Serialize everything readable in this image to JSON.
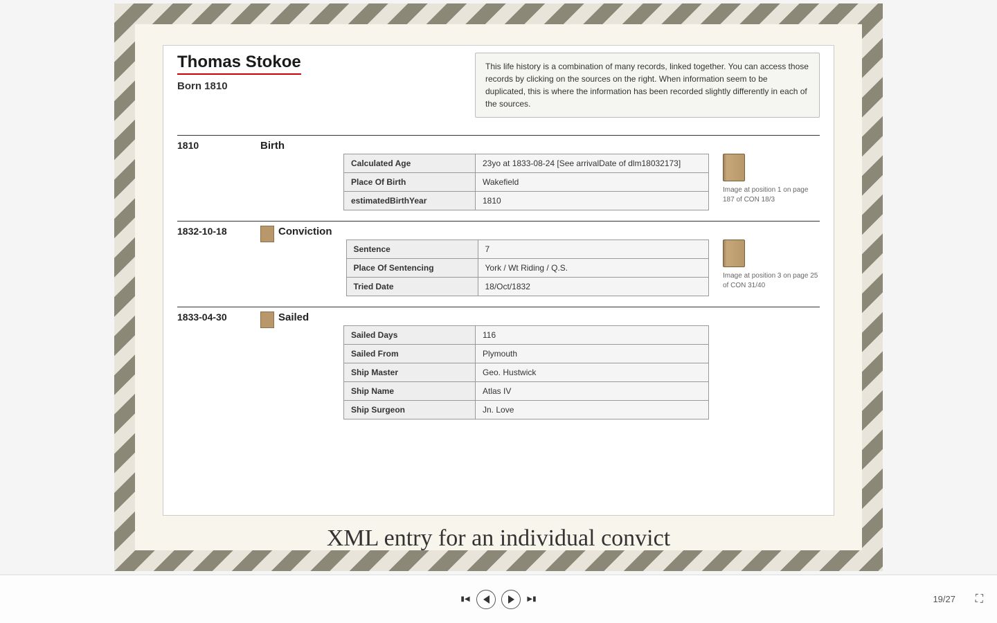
{
  "person": {
    "name": "Thomas Stokoe",
    "born_label": "Born 1810"
  },
  "info_box": "This life history is a combination of many records, linked together. You can access those records by clicking on the sources on the right. When information seem to be duplicated, this is where the information has been recorded slightly differently in each of the sources.",
  "events": [
    {
      "date": "1810",
      "title": "Birth",
      "has_icon": false,
      "rows": [
        {
          "k": "Calculated Age",
          "v": "23yo at 1833-08-24 [See arrivalDate of dlm18032173]"
        },
        {
          "k": "Place Of Birth",
          "v": "Wakefield"
        },
        {
          "k": "estimatedBirthYear",
          "v": "1810"
        }
      ],
      "source": "Image at position 1 on page 187 of CON 18/3"
    },
    {
      "date": "1832-10-18",
      "title": "Conviction",
      "has_icon": true,
      "rows": [
        {
          "k": "Sentence",
          "v": "7"
        },
        {
          "k": "Place Of Sentencing",
          "v": "York / Wt Riding / Q.S."
        },
        {
          "k": "Tried Date",
          "v": "18/Oct/1832"
        }
      ],
      "source": "Image at position 3 on page 25 of CON 31/40"
    },
    {
      "date": "1833-04-30",
      "title": "Sailed",
      "has_icon": true,
      "rows": [
        {
          "k": "Sailed Days",
          "v": "116"
        },
        {
          "k": "Sailed From",
          "v": "Plymouth"
        },
        {
          "k": "Ship Master",
          "v": "Geo. Hustwick"
        },
        {
          "k": "Ship Name",
          "v": "Atlas IV"
        },
        {
          "k": "Ship Surgeon",
          "v": "Jn. Love"
        }
      ],
      "source": ""
    }
  ],
  "caption": "XML entry for an individual convict",
  "navigation": {
    "current_page": "19",
    "total_pages": "27",
    "separator": "/"
  },
  "colors": {
    "accent_red": "#c00",
    "paper_bg": "#f8f5ec",
    "stripe_dark": "#8b8878",
    "stripe_light": "#e8e4d9"
  }
}
